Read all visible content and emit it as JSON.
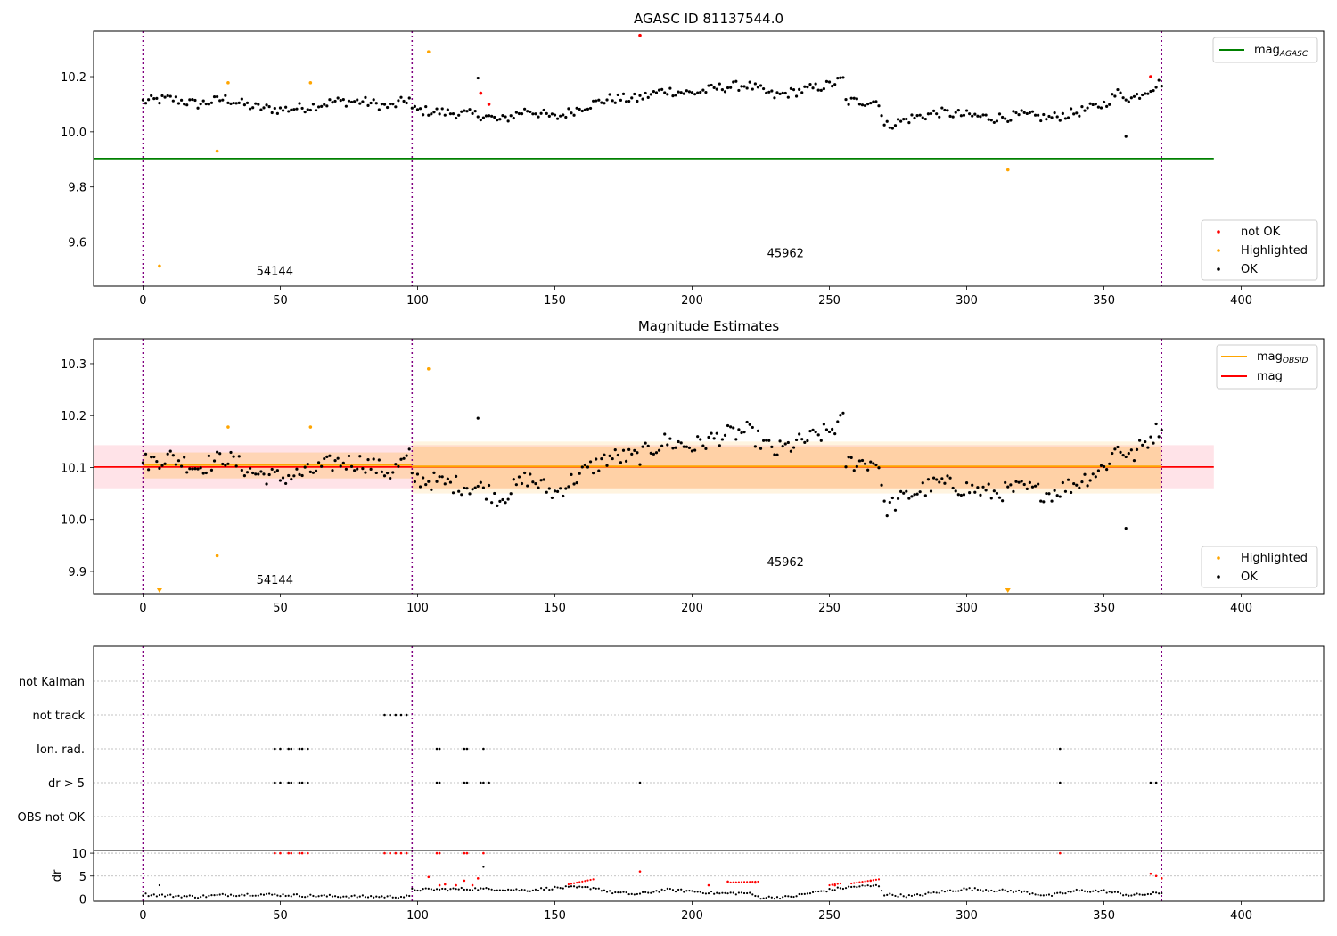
{
  "chart_data": [
    {
      "type": "scatter",
      "title": "AGASC ID 81137544.0",
      "xlim": [
        -18,
        430
      ],
      "ylim": [
        9.44,
        10.365
      ],
      "xticks": [
        0,
        50,
        100,
        150,
        200,
        250,
        300,
        350,
        400
      ],
      "yticks": [
        9.6,
        9.8,
        10.0,
        10.2
      ],
      "ytick_labels": [
        "9.6",
        "9.8",
        "10.0",
        "10.2"
      ],
      "obsid_boundaries": [
        0,
        98,
        371
      ],
      "obsid_labels": [
        {
          "x": 48,
          "y": 9.48,
          "text": "54144"
        },
        {
          "x": 234,
          "y": 9.545,
          "text": "45962"
        }
      ],
      "hlines": [
        {
          "name": "mag_AGASC",
          "y": 9.903,
          "x": [
            -18,
            390
          ],
          "color": "#008000"
        }
      ],
      "legend_lines": [
        {
          "label": "mag",
          "sub": "AGASC",
          "color": "#008000"
        }
      ],
      "legend_points": [
        {
          "label": "not OK",
          "color": "#ff0000"
        },
        {
          "label": "Highlighted",
          "color": "#ffa500"
        },
        {
          "label": "OK",
          "color": "#000000"
        }
      ],
      "series": [
        {
          "name": "OK",
          "color": "#000000",
          "trend": [
            [
              0,
              10.11
            ],
            [
              10,
              10.12
            ],
            [
              20,
              10.1
            ],
            [
              30,
              10.12
            ],
            [
              40,
              10.09
            ],
            [
              50,
              10.08
            ],
            [
              60,
              10.09
            ],
            [
              70,
              10.11
            ],
            [
              80,
              10.11
            ],
            [
              90,
              10.09
            ],
            [
              97,
              10.12
            ],
            [
              98,
              10.08
            ],
            [
              110,
              10.07
            ],
            [
              124,
              10.06
            ],
            [
              130,
              10.04
            ],
            [
              140,
              10.08
            ],
            [
              150,
              10.05
            ],
            [
              160,
              10.09
            ],
            [
              170,
              10.12
            ],
            [
              180,
              10.12
            ],
            [
              190,
              10.15
            ],
            [
              200,
              10.14
            ],
            [
              210,
              10.16
            ],
            [
              220,
              10.17
            ],
            [
              230,
              10.13
            ],
            [
              240,
              10.15
            ],
            [
              250,
              10.17
            ],
            [
              255,
              10.19
            ],
            [
              256,
              10.11
            ],
            [
              268,
              10.11
            ],
            [
              270,
              10.02
            ],
            [
              280,
              10.05
            ],
            [
              290,
              10.07
            ],
            [
              300,
              10.06
            ],
            [
              310,
              10.05
            ],
            [
              320,
              10.06
            ],
            [
              330,
              10.05
            ],
            [
              335,
              10.06
            ],
            [
              340,
              10.07
            ],
            [
              350,
              10.1
            ],
            [
              355,
              10.14
            ],
            [
              360,
              10.12
            ],
            [
              371,
              10.18
            ]
          ],
          "outliers": [
            [
              122,
              10.195
            ],
            [
              358,
              9.983
            ]
          ]
        },
        {
          "name": "Highlighted",
          "color": "#ffa500",
          "points": [
            [
              6,
              9.513
            ],
            [
              27,
              9.93
            ],
            [
              31,
              10.178
            ],
            [
              61,
              10.178
            ],
            [
              104,
              10.29
            ],
            [
              315,
              9.862
            ]
          ]
        },
        {
          "name": "not OK",
          "color": "#ff0000",
          "points": [
            [
              181,
              10.35
            ],
            [
              123,
              10.14
            ],
            [
              126,
              10.1
            ],
            [
              367,
              10.2
            ]
          ]
        }
      ]
    },
    {
      "type": "scatter",
      "title": "Magnitude Estimates",
      "xlim": [
        -18,
        430
      ],
      "ylim": [
        9.857,
        10.348
      ],
      "xticks": [
        0,
        50,
        100,
        150,
        200,
        250,
        300,
        350,
        400
      ],
      "yticks": [
        9.9,
        10.0,
        10.1,
        10.2,
        10.3
      ],
      "ytick_labels": [
        "9.9",
        "10.0",
        "10.1",
        "10.2",
        "10.3"
      ],
      "obsid_boundaries": [
        0,
        98,
        371
      ],
      "obsid_labels": [
        {
          "x": 48,
          "y": 9.876,
          "text": "54144"
        },
        {
          "x": 234,
          "y": 9.91,
          "text": "45962"
        }
      ],
      "bands": [
        {
          "x": [
            -18,
            390
          ],
          "y": [
            10.06,
            10.143
          ],
          "color": "#ffc0cb",
          "opacity": 0.45
        },
        {
          "x": [
            0,
            98
          ],
          "y": [
            10.079,
            10.129
          ],
          "color": "#ffa500",
          "opacity": 0.22
        },
        {
          "x": [
            98,
            371
          ],
          "y": [
            10.05,
            10.15
          ],
          "color": "#ffa500",
          "opacity": 0.12
        },
        {
          "x": [
            98,
            371
          ],
          "y": [
            10.06,
            10.14
          ],
          "color": "#ffa500",
          "opacity": 0.18
        }
      ],
      "hlines": [
        {
          "name": "mag",
          "y": 10.101,
          "x": [
            -18,
            390
          ],
          "color": "#ff0000"
        },
        {
          "name": "mag_OBSID",
          "y": 10.105,
          "x": [
            0,
            98
          ],
          "color": "#ffa500"
        },
        {
          "name": "mag_OBSID",
          "y": 10.102,
          "x": [
            98,
            371
          ],
          "color": "#ffa500"
        }
      ],
      "legend_lines": [
        {
          "label": "mag",
          "sub": "OBSID",
          "color": "#ffa500"
        },
        {
          "label": "mag",
          "sub": "",
          "color": "#ff0000"
        }
      ],
      "legend_points": [
        {
          "label": "Highlighted",
          "color": "#ffa500"
        },
        {
          "label": "OK",
          "color": "#000000"
        }
      ],
      "series": [
        {
          "name": "OK",
          "color": "#000000",
          "trend": [
            [
              0,
              10.11
            ],
            [
              10,
              10.12
            ],
            [
              20,
              10.1
            ],
            [
              30,
              10.12
            ],
            [
              40,
              10.09
            ],
            [
              50,
              10.08
            ],
            [
              60,
              10.09
            ],
            [
              70,
              10.11
            ],
            [
              80,
              10.11
            ],
            [
              90,
              10.09
            ],
            [
              97,
              10.12
            ],
            [
              98,
              10.08
            ],
            [
              110,
              10.07
            ],
            [
              124,
              10.06
            ],
            [
              130,
              10.04
            ],
            [
              140,
              10.08
            ],
            [
              150,
              10.05
            ],
            [
              160,
              10.09
            ],
            [
              170,
              10.12
            ],
            [
              180,
              10.12
            ],
            [
              190,
              10.15
            ],
            [
              200,
              10.14
            ],
            [
              210,
              10.16
            ],
            [
              220,
              10.17
            ],
            [
              230,
              10.13
            ],
            [
              240,
              10.15
            ],
            [
              250,
              10.17
            ],
            [
              255,
              10.19
            ],
            [
              256,
              10.11
            ],
            [
              268,
              10.11
            ],
            [
              270,
              10.02
            ],
            [
              280,
              10.05
            ],
            [
              290,
              10.07
            ],
            [
              300,
              10.06
            ],
            [
              310,
              10.05
            ],
            [
              320,
              10.06
            ],
            [
              330,
              10.05
            ],
            [
              335,
              10.06
            ],
            [
              340,
              10.07
            ],
            [
              350,
              10.1
            ],
            [
              355,
              10.14
            ],
            [
              360,
              10.12
            ],
            [
              371,
              10.18
            ]
          ],
          "outliers": [
            [
              122,
              10.195
            ],
            [
              358,
              9.983
            ]
          ]
        },
        {
          "name": "Highlighted",
          "color": "#ffa500",
          "points": [
            [
              27,
              9.93
            ],
            [
              31,
              10.178
            ],
            [
              61,
              10.178
            ],
            [
              104,
              10.29
            ]
          ],
          "off_axis_markers": [
            [
              6,
              9.865
            ],
            [
              315,
              9.865
            ]
          ]
        }
      ]
    },
    {
      "type": "scatter",
      "title": "",
      "xlim": [
        -18,
        430
      ],
      "xticks": [
        0,
        50,
        100,
        150,
        200,
        250,
        300,
        350,
        400
      ],
      "obsid_boundaries": [
        0,
        98,
        371
      ],
      "flag_rows": [
        "not Kalman",
        "not track",
        "Ion. rad.",
        "dr > 5",
        "OBS not OK"
      ],
      "flags": {
        "not Kalman": [],
        "not track": [
          88,
          90,
          92,
          94,
          96
        ],
        "Ion. rad.": [
          48,
          50,
          53,
          54,
          57,
          58,
          60,
          107,
          108,
          117,
          118,
          124,
          334
        ],
        "dr > 5": [
          48,
          50,
          53,
          54,
          57,
          58,
          60,
          107,
          108,
          117,
          118,
          123,
          124,
          126,
          181,
          334,
          367,
          369
        ],
        "OBS not OK": []
      }
    },
    {
      "type": "scatter",
      "title": "",
      "ylabel": "dr",
      "xlim": [
        -18,
        430
      ],
      "ylim": [
        -0.5,
        10.6
      ],
      "xticks": [
        0,
        50,
        100,
        150,
        200,
        250,
        300,
        350,
        400
      ],
      "yticks": [
        0,
        5,
        10
      ],
      "ytick_labels": [
        "0",
        "5",
        "10"
      ],
      "obsid_boundaries": [
        0,
        98,
        371
      ],
      "series": [
        {
          "name": "OK",
          "color": "#000000",
          "trend": [
            [
              0,
              1
            ],
            [
              10,
              0.7
            ],
            [
              20,
              0.5
            ],
            [
              30,
              0.9
            ],
            [
              40,
              1
            ],
            [
              50,
              0.9
            ],
            [
              60,
              0.7
            ],
            [
              70,
              0.6
            ],
            [
              80,
              0.5
            ],
            [
              97,
              0.5
            ],
            [
              98,
              2
            ],
            [
              110,
              2.1
            ],
            [
              120,
              2.2
            ],
            [
              130,
              2.1
            ],
            [
              140,
              1.9
            ],
            [
              150,
              2.4
            ],
            [
              155,
              2.5
            ],
            [
              165,
              2.4
            ],
            [
              170,
              1.5
            ],
            [
              180,
              1
            ],
            [
              190,
              2
            ],
            [
              200,
              1.7
            ],
            [
              210,
              1.2
            ],
            [
              220,
              1.3
            ],
            [
              225,
              0.3
            ],
            [
              235,
              0.4
            ],
            [
              245,
              1.5
            ],
            [
              255,
              2.4
            ],
            [
              260,
              2.7
            ],
            [
              268,
              2.9
            ],
            [
              270,
              1
            ],
            [
              280,
              0.6
            ],
            [
              290,
              1.5
            ],
            [
              300,
              2.2
            ],
            [
              310,
              1.9
            ],
            [
              320,
              1.6
            ],
            [
              330,
              0.7
            ],
            [
              340,
              1.8
            ],
            [
              350,
              1.7
            ],
            [
              360,
              0.8
            ],
            [
              371,
              1.3
            ]
          ],
          "outliers": [
            [
              6,
              3
            ],
            [
              124,
              7
            ]
          ]
        },
        {
          "name": "not OK",
          "color": "#ff0000",
          "points": [
            [
              48,
              10
            ],
            [
              50,
              10
            ],
            [
              53,
              10
            ],
            [
              54,
              10
            ],
            [
              57,
              10
            ],
            [
              58,
              10
            ],
            [
              60,
              10
            ],
            [
              88,
              10
            ],
            [
              90,
              10
            ],
            [
              92,
              10
            ],
            [
              94,
              10
            ],
            [
              96,
              10
            ],
            [
              107,
              10
            ],
            [
              108,
              10
            ],
            [
              117,
              10
            ],
            [
              118,
              10
            ],
            [
              124,
              10
            ],
            [
              334,
              10
            ],
            [
              104,
              4.8
            ],
            [
              108,
              3
            ],
            [
              110,
              3.2
            ],
            [
              114,
              3
            ],
            [
              117,
              4
            ],
            [
              120,
              3
            ],
            [
              122,
              4.5
            ],
            [
              181,
              6
            ],
            [
              206,
              3
            ],
            [
              213,
              3.8
            ],
            [
              223,
              3.6
            ],
            [
              252,
              3
            ],
            [
              265,
              4
            ],
            [
              367,
              5.5
            ],
            [
              369,
              5
            ],
            [
              371,
              4.5
            ]
          ],
          "bands": [
            [
              155,
              164,
              3.2,
              4.3
            ],
            [
              213,
              224,
              3.6,
              3.8
            ],
            [
              250,
              254,
              3,
              3.4
            ],
            [
              258,
              268,
              3.4,
              4.3
            ]
          ]
        }
      ]
    }
  ]
}
